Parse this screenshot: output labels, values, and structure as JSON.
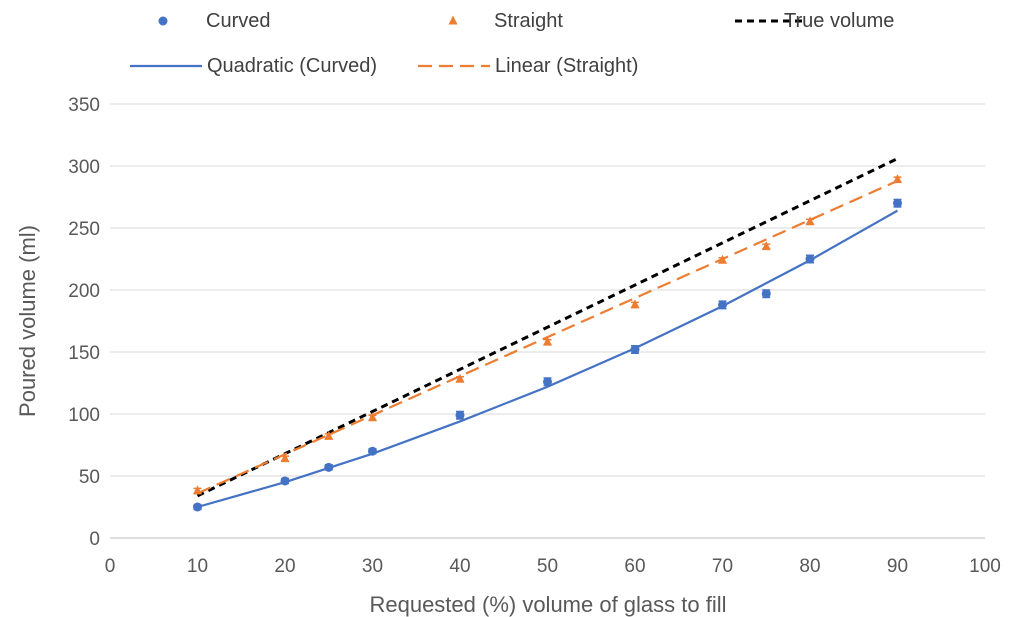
{
  "chart_data": {
    "type": "scatter",
    "title": "",
    "xlabel": "Requested (%) volume of glass to fill",
    "ylabel": "Poured volume (ml)",
    "xlim": [
      0,
      100
    ],
    "ylim": [
      0,
      350
    ],
    "xticks": [
      0,
      10,
      20,
      30,
      40,
      50,
      60,
      70,
      80,
      90,
      100
    ],
    "yticks": [
      0,
      50,
      100,
      150,
      200,
      250,
      300,
      350
    ],
    "grid": "horizontal",
    "legend_position": "top",
    "series": [
      {
        "name": "Curved",
        "kind": "points",
        "marker": "circle",
        "color": "#4472C4",
        "x": [
          10,
          20,
          25,
          30,
          40,
          50,
          60,
          70,
          75,
          80,
          90
        ],
        "y": [
          25,
          46,
          57,
          70,
          99,
          126,
          152,
          188,
          197,
          225,
          270
        ],
        "error": [
          2,
          2,
          2,
          2,
          3,
          3,
          3,
          3,
          3,
          3,
          3
        ]
      },
      {
        "name": "Straight",
        "kind": "points",
        "marker": "triangle",
        "color": "#ED7D31",
        "x": [
          10,
          20,
          25,
          30,
          40,
          50,
          60,
          70,
          75,
          80,
          90
        ],
        "y": [
          38,
          64,
          82,
          97,
          128,
          158,
          188,
          224,
          235,
          255,
          289
        ],
        "error": [
          2,
          2,
          2,
          2,
          2,
          2,
          2,
          2,
          2,
          2,
          2
        ]
      },
      {
        "name": "True volume",
        "kind": "line",
        "style": "dotted",
        "color": "#000000",
        "x": [
          10,
          90
        ],
        "y": [
          34,
          306
        ]
      },
      {
        "name": "Quadratic (Curved)",
        "kind": "line",
        "style": "solid",
        "color": "#4472C4",
        "x": [
          10,
          20,
          30,
          40,
          50,
          60,
          70,
          80,
          90
        ],
        "y": [
          25,
          45,
          68,
          94,
          122,
          153,
          187,
          224,
          264
        ]
      },
      {
        "name": "Linear (Straight)",
        "kind": "line",
        "style": "dashed",
        "color": "#ED7D31",
        "x": [
          10,
          90
        ],
        "y": [
          36,
          288
        ]
      }
    ]
  }
}
